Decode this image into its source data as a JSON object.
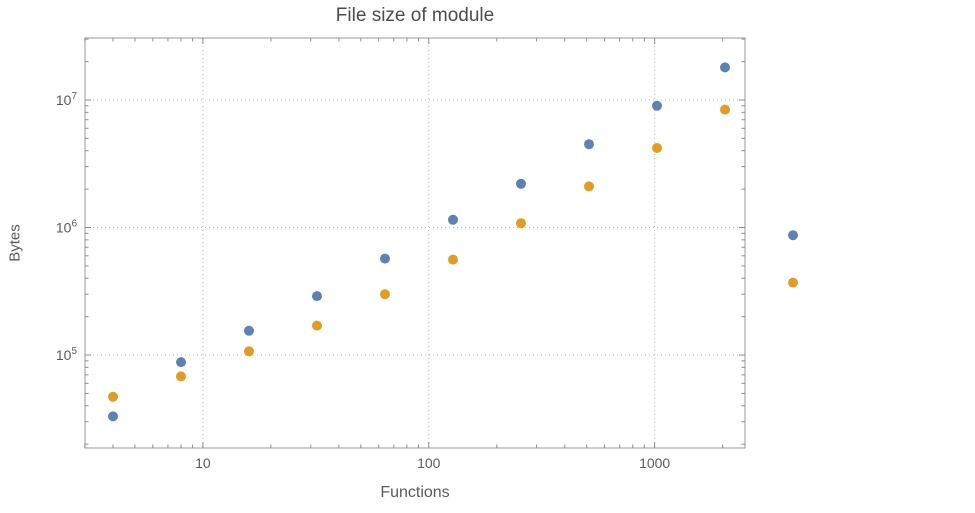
{
  "chart_data": {
    "type": "scatter",
    "title": "File size of module",
    "xlabel": "Functions",
    "ylabel": "Bytes",
    "x_scale": "log",
    "y_scale": "log",
    "grid": true,
    "legend": "none",
    "x": [
      4,
      8,
      16,
      32,
      64,
      128,
      256,
      512,
      1024,
      2048,
      4096
    ],
    "series": [
      {
        "name": "blue-series",
        "color": "#5E81B5",
        "values": [
          33000,
          88000,
          155000,
          290000,
          570000,
          1150000,
          2200000,
          4500000,
          9000000,
          18000000,
          870000
        ]
      },
      {
        "name": "orange-series",
        "color": "#E19C24",
        "values": [
          47000,
          68000,
          107000,
          170000,
          300000,
          560000,
          1080000,
          2100000,
          4200000,
          8400000,
          370000
        ]
      }
    ],
    "x_ticks": [
      10,
      100,
      1000
    ],
    "x_tick_labels": [
      "10",
      "100",
      "1000"
    ],
    "y_ticks": [
      100000,
      1000000,
      10000000
    ],
    "y_tick_labels": [
      {
        "mantissa": "10",
        "exponent": "5"
      },
      {
        "mantissa": "10",
        "exponent": "6"
      },
      {
        "mantissa": "10",
        "exponent": "7"
      }
    ],
    "x_range_log": [
      0.478,
      3.4
    ],
    "y_range_log": [
      4.271,
      7.486
    ],
    "colors": {
      "grid": "#b9b9b9",
      "frame": "#9a9a9a",
      "tick": "#8c8c8c",
      "text": "#5a5a5a",
      "title": "#4c4c4c"
    },
    "marker_radius": 5
  }
}
